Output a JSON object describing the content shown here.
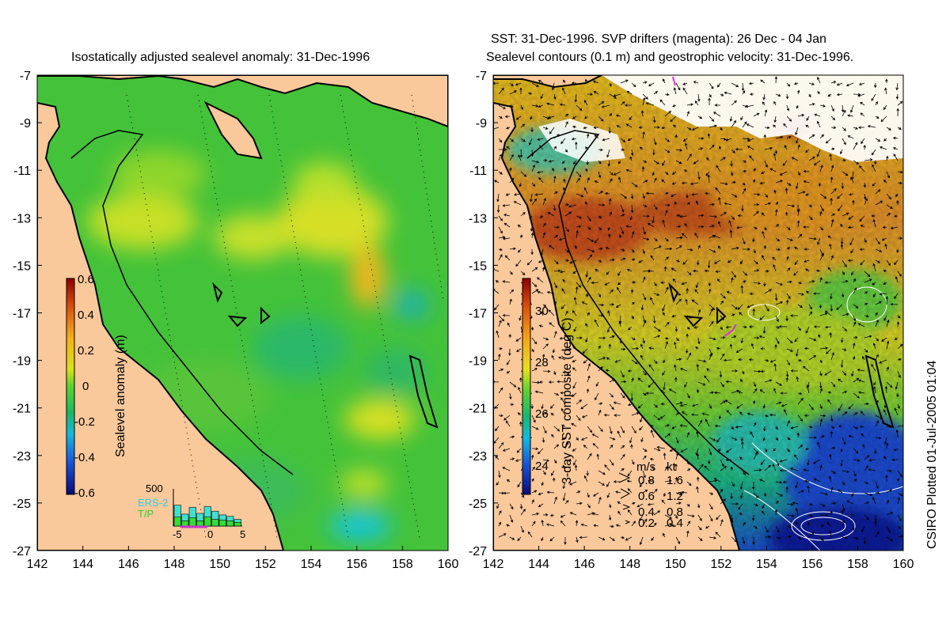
{
  "left_panel": {
    "title": "Isostatically adjusted sealevel anomaly: 31-Dec-1996",
    "colorbar": {
      "label": "Sealevel anomaly (m)",
      "ticks": [
        "0.6",
        "0.4",
        "0.2",
        "0",
        "-0.2",
        "-0.4",
        "-0.6"
      ]
    },
    "histogram": {
      "ymax_label": "500",
      "legend_ers": "ERS-2",
      "legend_tp": "T/P",
      "x_ticks": [
        "-5",
        "0",
        "5"
      ],
      "ers_color": "#40e0d0",
      "tp_color": "#33dd33",
      "bars": [
        {
          "ers": 280,
          "tp": 120
        },
        {
          "ers": 160,
          "tp": 70
        },
        {
          "ers": 250,
          "tp": 110
        },
        {
          "ers": 170,
          "tp": 70
        },
        {
          "ers": 260,
          "tp": 120
        },
        {
          "ers": 200,
          "tp": 90
        },
        {
          "ers": 150,
          "tp": 80
        },
        {
          "ers": 130,
          "tp": 70
        },
        {
          "ers": 90,
          "tp": 50
        }
      ]
    }
  },
  "right_panel": {
    "title_line1": "SST: 31-Dec-1996. SVP drifters (magenta): 26 Dec - 04 Jan",
    "title_line2": "Sealevel contours (0.1 m) and geostrophic velocity: 31-Dec-1996.",
    "colorbar": {
      "label": "3-day SST composite (deg C)",
      "ticks": [
        "30",
        "28",
        "26",
        "24"
      ]
    },
    "velocity_legend": {
      "header_ms": "m/s",
      "header_kt": "kt",
      "rows": [
        {
          "ms": "0.8",
          "kt": "1.6"
        },
        {
          "ms": "0.6",
          "kt": "1.2"
        },
        {
          "ms": "0.4",
          "kt": "0.8"
        },
        {
          "ms": "0.2",
          "kt": "0.4"
        }
      ]
    }
  },
  "axes": {
    "lon_ticks": [
      "142",
      "144",
      "146",
      "148",
      "150",
      "152",
      "154",
      "156",
      "158",
      "160"
    ],
    "lat_ticks": [
      "-7",
      "-9",
      "-11",
      "-13",
      "-15",
      "-17",
      "-19",
      "-21",
      "-23",
      "-25",
      "-27"
    ]
  },
  "credit": "CSIRO Plotted 01-Jul-2005 01:04",
  "colors": {
    "land": "#f9c89b",
    "ssa_base": "#44c23a",
    "sst_base": "#f0a020"
  }
}
